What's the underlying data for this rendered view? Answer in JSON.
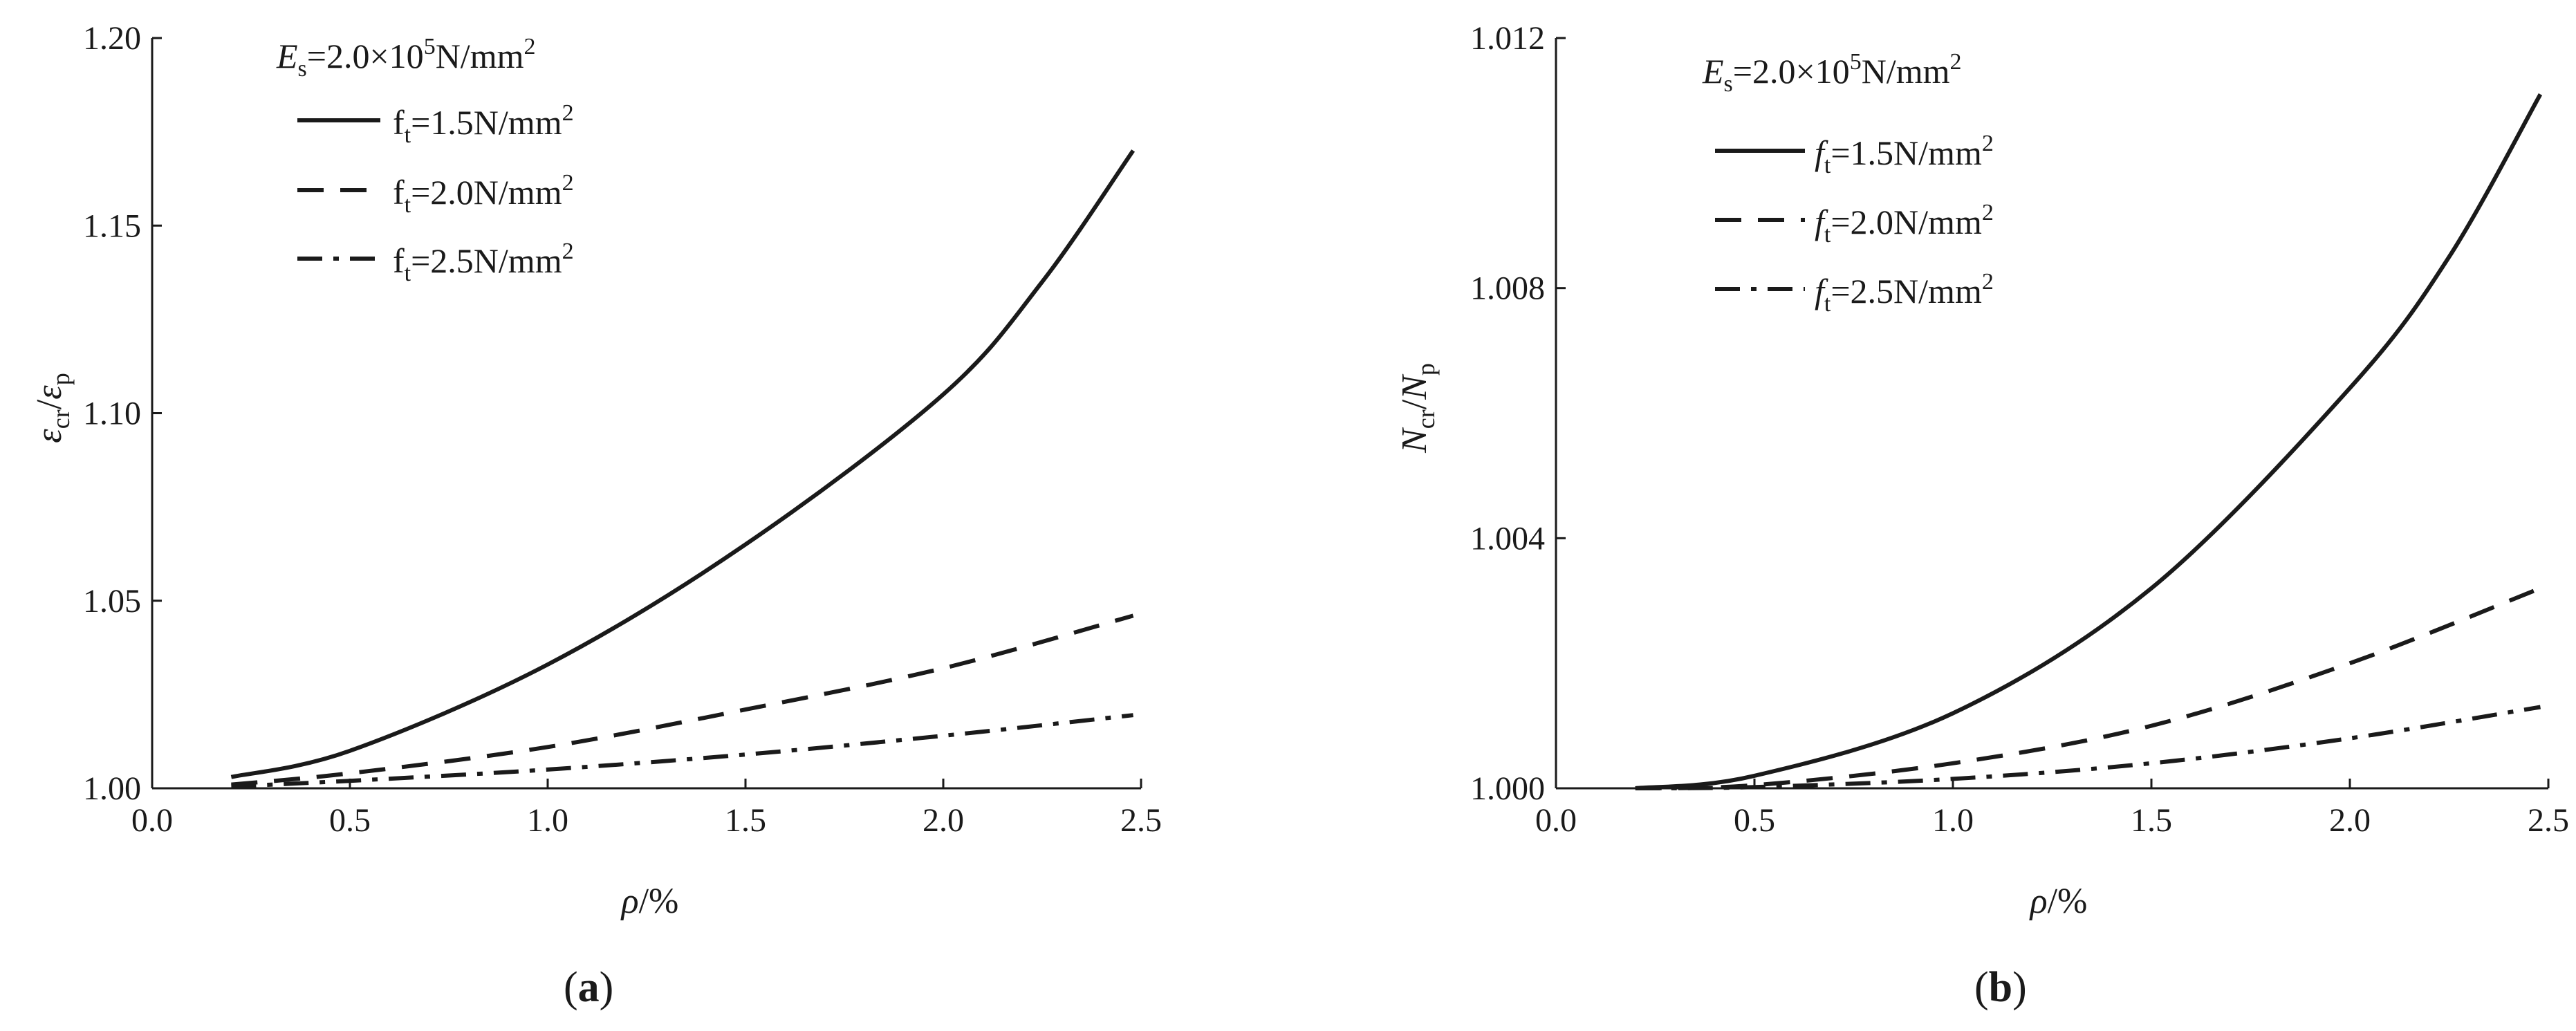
{
  "chart_data": [
    {
      "type": "line",
      "panel_label": "a",
      "xlim": [
        0.0,
        2.5
      ],
      "ylim": [
        1.0,
        1.2
      ],
      "xticks": [
        "0.0",
        "0.5",
        "1.0",
        "1.5",
        "2.0",
        "2.5"
      ],
      "yticks": [
        "1.00",
        "1.05",
        "1.10",
        "1.15",
        "1.20"
      ],
      "xticks_values": [
        0.0,
        0.5,
        1.0,
        1.5,
        2.0,
        2.5
      ],
      "yticks_values": [
        1.0,
        1.05,
        1.1,
        1.15,
        1.2
      ],
      "xlabel": {
        "main": "ρ",
        "rest": "/%"
      },
      "ylabel": {
        "n1": "ε",
        "n1_sub": "cr",
        "sep": "/",
        "n2": "ε",
        "n2_sub": "p"
      },
      "legend_header": {
        "sym": "E",
        "sub": "s",
        "eq": "=2.0×10",
        "sup": "5",
        "unit": "N/mm",
        "unit_sup": "2"
      },
      "legend_location": "top-left",
      "series": [
        {
          "name": "f",
          "name_sub": "t",
          "name_rest": "=1.5N/mm",
          "name_sup": "2",
          "dash": "solid",
          "x": [
            0.2,
            0.5,
            1.0,
            1.5,
            2.0,
            2.25,
            2.48
          ],
          "y": [
            1.003,
            1.01,
            1.033,
            1.065,
            1.105,
            1.135,
            1.17
          ]
        },
        {
          "name": "f",
          "name_sub": "t",
          "name_rest": "=2.0N/mm",
          "name_sup": "2",
          "dash": "dashed",
          "x": [
            0.2,
            0.5,
            1.0,
            1.5,
            2.0,
            2.48
          ],
          "y": [
            1.001,
            1.004,
            1.011,
            1.021,
            1.032,
            1.046
          ]
        },
        {
          "name": "f",
          "name_sub": "t",
          "name_rest": "=2.5N/mm",
          "name_sup": "2",
          "dash": "dashdot",
          "x": [
            0.2,
            0.5,
            1.0,
            1.5,
            2.0,
            2.48
          ],
          "y": [
            1.0005,
            1.002,
            1.005,
            1.009,
            1.014,
            1.0195
          ]
        }
      ]
    },
    {
      "type": "line",
      "panel_label": "b",
      "xlim": [
        0.0,
        2.5
      ],
      "ylim": [
        1.0,
        1.012
      ],
      "xticks": [
        "0.0",
        "0.5",
        "1.0",
        "1.5",
        "2.0",
        "2.5"
      ],
      "yticks": [
        "1.000",
        "1.004",
        "1.008",
        "1.012"
      ],
      "xticks_values": [
        0.0,
        0.5,
        1.0,
        1.5,
        2.0,
        2.5
      ],
      "yticks_values": [
        1.0,
        1.004,
        1.008,
        1.012
      ],
      "xlabel": {
        "main": "ρ",
        "rest": "/%"
      },
      "ylabel": {
        "n1": "N",
        "n1_sub": "cr",
        "sep": "/",
        "n2": "N",
        "n2_sub": "p"
      },
      "legend_header": {
        "sym": "E",
        "sub": "s",
        "eq": "=2.0×10",
        "sup": "5",
        "unit": "N/mm",
        "unit_sup": "2"
      },
      "legend_location": "top-left",
      "series": [
        {
          "name": "f",
          "name_sub": "t",
          "name_rest": "=1.5N/mm",
          "name_sup": "2",
          "dash": "solid",
          "x": [
            0.2,
            0.5,
            1.0,
            1.5,
            2.0,
            2.25,
            2.48
          ],
          "y": [
            1.0,
            1.0002,
            1.0012,
            1.0032,
            1.0064,
            1.0085,
            1.0111
          ]
        },
        {
          "name": "f",
          "name_sub": "t",
          "name_rest": "=2.0N/mm",
          "name_sup": "2",
          "dash": "dashed",
          "x": [
            0.2,
            0.5,
            1.0,
            1.5,
            2.0,
            2.48
          ],
          "y": [
            1.0,
            1.00005,
            1.0004,
            1.001,
            1.002,
            1.0032
          ]
        },
        {
          "name": "f",
          "name_sub": "t",
          "name_rest": "=2.5N/mm",
          "name_sup": "2",
          "dash": "dashdot",
          "x": [
            0.2,
            0.5,
            1.0,
            1.5,
            2.0,
            2.48
          ],
          "y": [
            1.0,
            1.00002,
            1.00015,
            1.0004,
            1.0008,
            1.0013
          ]
        }
      ]
    }
  ]
}
